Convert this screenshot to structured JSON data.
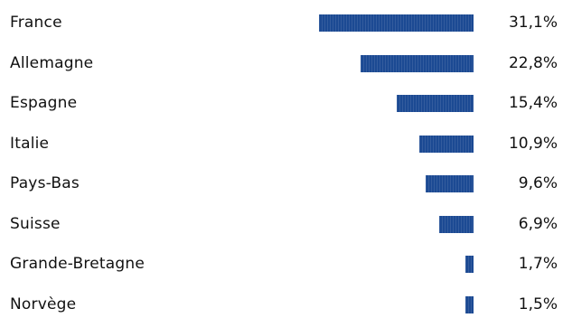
{
  "chart_data": {
    "type": "bar",
    "orientation": "horizontal",
    "categories": [
      "France",
      "Allemagne",
      "Espagne",
      "Italie",
      "Pays-Bas",
      "Suisse",
      "Grande-Bretagne",
      "Norvège"
    ],
    "values": [
      31.1,
      22.8,
      15.4,
      10.9,
      9.6,
      6.9,
      1.7,
      1.5
    ],
    "value_labels": [
      "31,1%",
      "22,8%",
      "15,4%",
      "10,9%",
      "9,6%",
      "6,9%",
      "1,7%",
      "1,5%"
    ],
    "bar_color": "#1c4a93",
    "title": "",
    "xlabel": "",
    "ylabel": "",
    "grid": false,
    "legend": "none"
  }
}
